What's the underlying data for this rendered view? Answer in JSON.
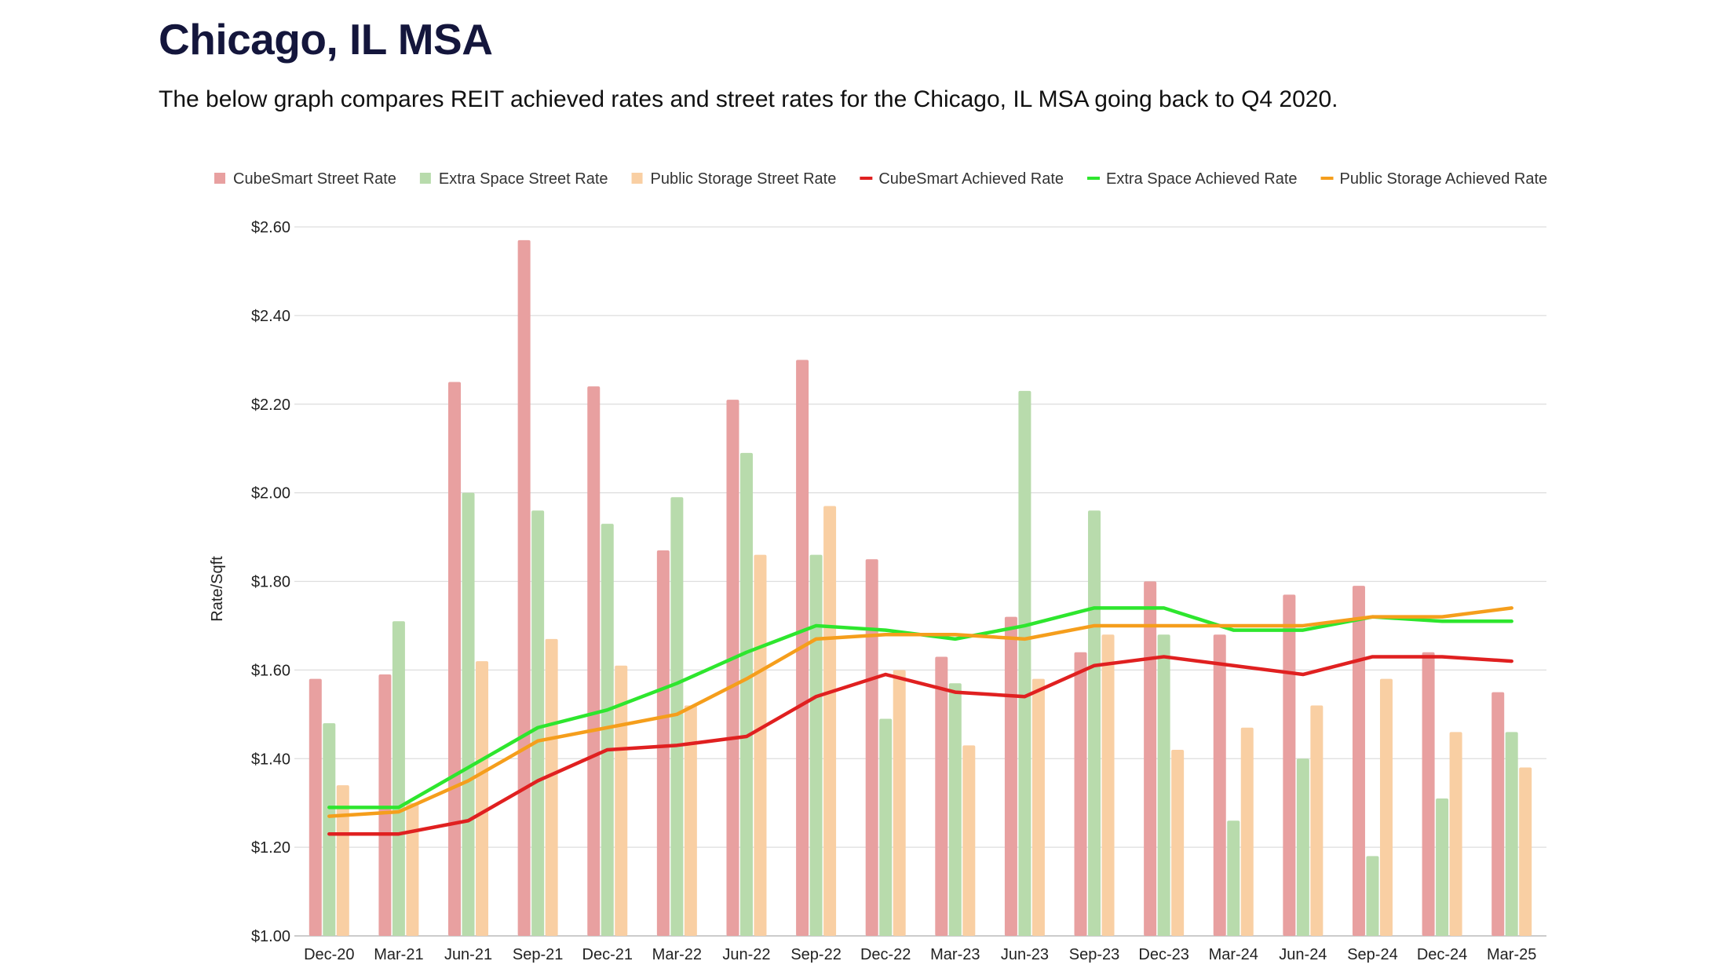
{
  "page": {
    "title": "Chicago, IL MSA",
    "subtitle": "The below graph compares REIT achieved rates and street rates for the Chicago, IL MSA going back to Q4 2020."
  },
  "chart_data": {
    "type": "bar",
    "title": "",
    "xlabel": "",
    "ylabel": "Rate/Sqft",
    "ylim": [
      1.0,
      2.6
    ],
    "yticks": [
      1.0,
      1.2,
      1.4,
      1.6,
      1.8,
      2.0,
      2.2,
      2.4,
      2.6
    ],
    "ytick_labels": [
      "$1.00",
      "$1.20",
      "$1.40",
      "$1.60",
      "$1.80",
      "$2.00",
      "$2.20",
      "$2.40",
      "$2.60"
    ],
    "grid": true,
    "legend_position": "top",
    "categories": [
      "Dec-20",
      "Mar-21",
      "Jun-21",
      "Sep-21",
      "Dec-21",
      "Mar-22",
      "Jun-22",
      "Sep-22",
      "Dec-22",
      "Mar-23",
      "Jun-23",
      "Sep-23",
      "Dec-23",
      "Mar-24",
      "Jun-24",
      "Sep-24",
      "Dec-24",
      "Mar-25"
    ],
    "series": [
      {
        "name": "CubeSmart Street Rate",
        "kind": "bar",
        "color": "#e8a0a0",
        "values": [
          1.58,
          1.59,
          2.25,
          2.57,
          2.24,
          1.87,
          2.21,
          2.3,
          1.85,
          1.63,
          1.72,
          1.64,
          1.8,
          1.68,
          1.77,
          1.79,
          1.64,
          1.55
        ]
      },
      {
        "name": "Extra Space Street Rate",
        "kind": "bar",
        "color": "#b8dbac",
        "values": [
          1.48,
          1.71,
          2.0,
          1.96,
          1.93,
          1.99,
          2.09,
          1.86,
          1.49,
          1.57,
          2.23,
          1.96,
          1.68,
          1.26,
          1.4,
          1.18,
          1.31,
          1.46
        ]
      },
      {
        "name": "Public Storage Street Rate",
        "kind": "bar",
        "color": "#f9cfa3",
        "values": [
          1.34,
          1.3,
          1.62,
          1.67,
          1.61,
          1.52,
          1.86,
          1.97,
          1.6,
          1.43,
          1.58,
          1.68,
          1.42,
          1.47,
          1.52,
          1.58,
          1.46,
          1.38
        ]
      },
      {
        "name": "CubeSmart Achieved Rate",
        "kind": "line",
        "color": "#e02020",
        "values": [
          1.23,
          1.23,
          1.26,
          1.35,
          1.42,
          1.43,
          1.45,
          1.54,
          1.59,
          1.55,
          1.54,
          1.61,
          1.63,
          1.61,
          1.59,
          1.63,
          1.63,
          1.62
        ]
      },
      {
        "name": "Extra Space Achieved Rate",
        "kind": "line",
        "color": "#2ee62e",
        "values": [
          1.29,
          1.29,
          1.38,
          1.47,
          1.51,
          1.57,
          1.64,
          1.7,
          1.69,
          1.67,
          1.7,
          1.74,
          1.74,
          1.69,
          1.69,
          1.72,
          1.71,
          1.71
        ]
      },
      {
        "name": "Public Storage Achieved Rate",
        "kind": "line",
        "color": "#f59e1c",
        "values": [
          1.27,
          1.28,
          1.35,
          1.44,
          1.47,
          1.5,
          1.58,
          1.67,
          1.68,
          1.68,
          1.67,
          1.7,
          1.7,
          1.7,
          1.7,
          1.72,
          1.72,
          1.74
        ]
      }
    ]
  }
}
